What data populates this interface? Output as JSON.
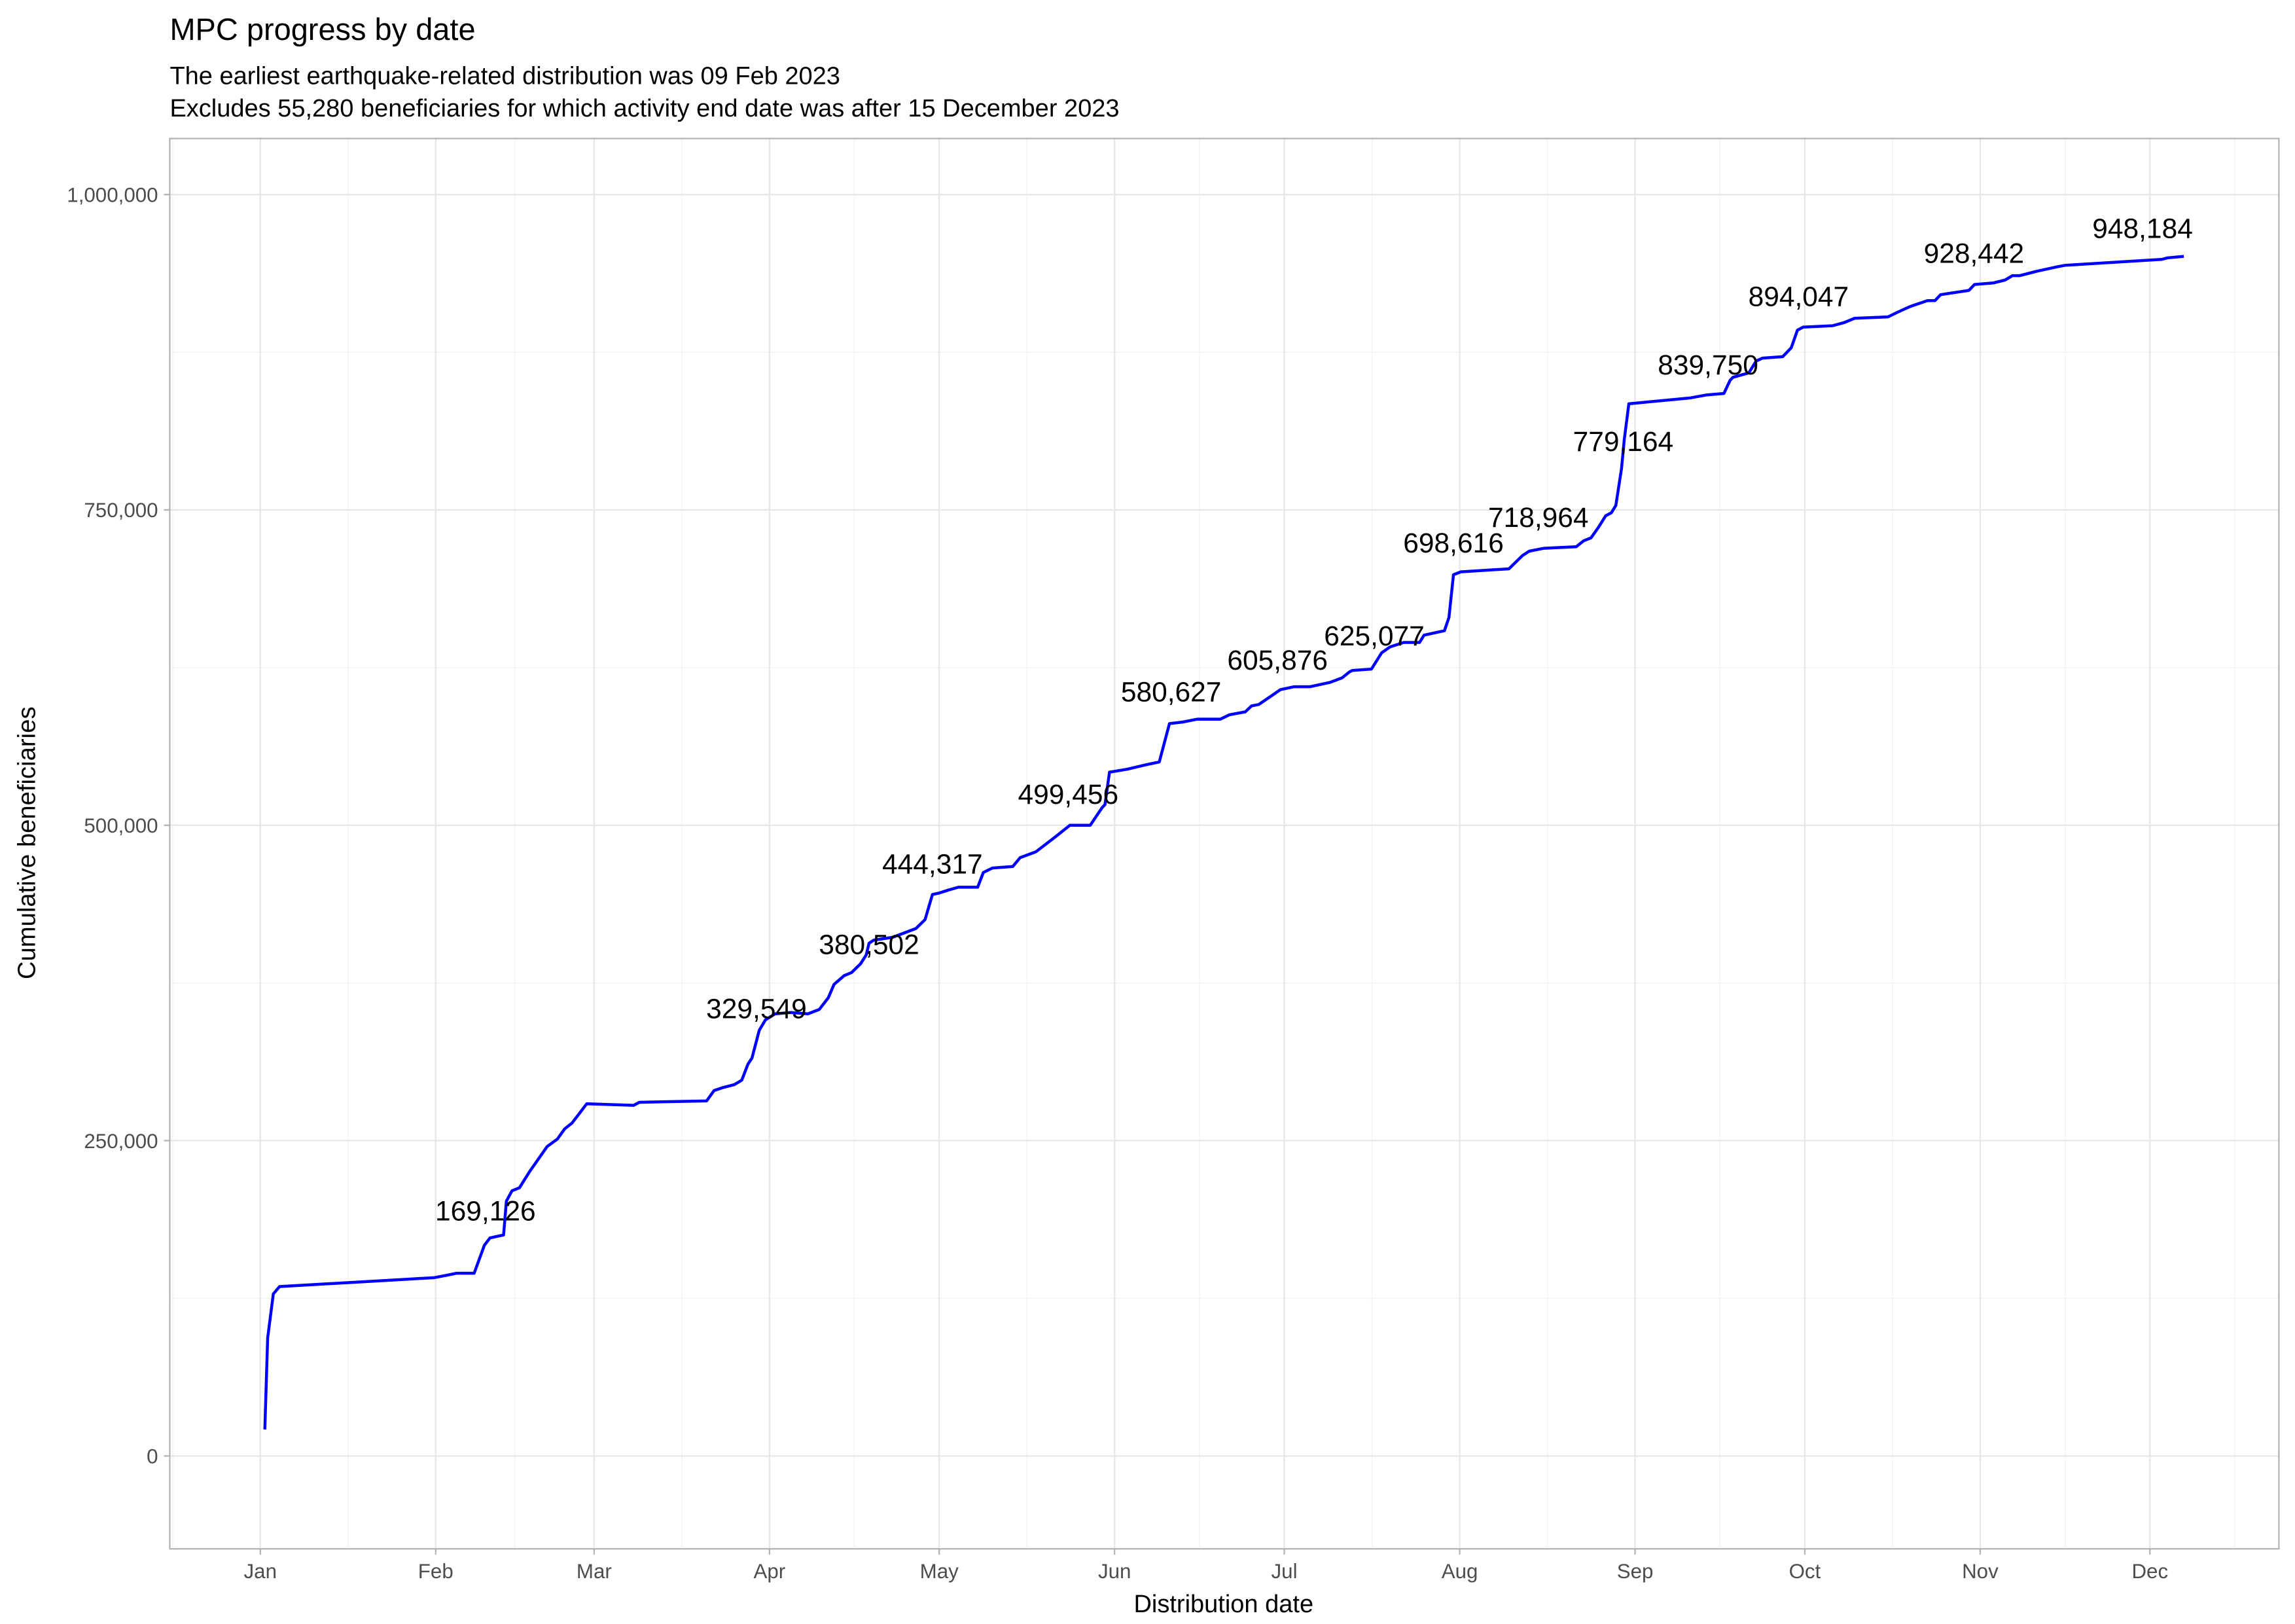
{
  "chart_data": {
    "type": "line",
    "title": "MPC progress by date",
    "subtitle": [
      "The earliest earthquake-related distribution was 09 Feb 2023",
      "Excludes 55,280 beneficiaries for which activity end date was after 15 December 2023"
    ],
    "x_label": "Distribution date",
    "y_label": "Cumulative beneficiaries",
    "xlim": [
      -15,
      357.8
    ],
    "ylim": [
      -73600,
      1044400
    ],
    "xticks": [
      {
        "value": 1,
        "label": "Jan"
      },
      {
        "value": 32,
        "label": "Feb"
      },
      {
        "value": 60,
        "label": "Mar"
      },
      {
        "value": 91,
        "label": "Apr"
      },
      {
        "value": 121,
        "label": "May"
      },
      {
        "value": 152,
        "label": "Jun"
      },
      {
        "value": 182,
        "label": "Jul"
      },
      {
        "value": 213,
        "label": "Aug"
      },
      {
        "value": 244,
        "label": "Sep"
      },
      {
        "value": 274,
        "label": "Oct"
      },
      {
        "value": 305,
        "label": "Nov"
      },
      {
        "value": 335,
        "label": "Dec"
      }
    ],
    "yticks": [
      0,
      {
        "value": 250000,
        "label": "250,000"
      },
      {
        "value": 500000,
        "label": "500,000"
      },
      {
        "value": 750000,
        "label": "750,000"
      },
      {
        "value": 1000000,
        "label": "1,000,000"
      }
    ],
    "grid": true,
    "x": [
      1.8,
      2.3,
      3.3,
      4.4,
      31.8,
      34.4,
      35.7,
      38.8,
      40.6,
      41.6,
      44,
      44.5,
      45.5,
      46.8,
      48.6,
      51.7,
      53.5,
      54.8,
      56.1,
      58.7,
      67,
      68,
      79.9,
      81.2,
      82.8,
      84.8,
      86.1,
      87.2,
      87.9,
      89.2,
      90.3,
      92,
      94.7,
      97.8,
      99.8,
      101.4,
      102.4,
      104.2,
      105.5,
      107.1,
      108.1,
      108.6,
      109.4,
      112.8,
      116.9,
      118.5,
      119.8,
      121,
      122.6,
      124.4,
      127.8,
      128.8,
      130.4,
      134,
      135.3,
      138.1,
      141.5,
      144.1,
      147.7,
      149.8,
      150.3,
      151.1,
      154.2,
      157.5,
      159.9,
      161.7,
      164,
      166.6,
      170.7,
      172.3,
      175.1,
      176.2,
      177.5,
      179.8,
      181.3,
      183.7,
      186.5,
      190.1,
      192.2,
      193.5,
      194,
      197.4,
      199.2,
      200.7,
      203.1,
      205.9,
      206.7,
      210.3,
      211.1,
      211.9,
      213.2,
      221.7,
      224.1,
      225.3,
      227.9,
      233.6,
      234.9,
      236.2,
      237.5,
      238.8,
      239.8,
      240.6,
      241.6,
      242.1,
      242.9,
      253.8,
      256.6,
      259.7,
      260.8,
      261.3,
      264.1,
      265.4,
      266.5,
      270.1,
      271.6,
      272.7,
      273.7,
      278.9,
      280.9,
      282.8,
      288.7,
      290.3,
      292.6,
      295.7,
      297,
      298,
      303,
      304,
      307.3,
      309.4,
      310.7,
      312,
      315.1,
      318.7,
      320,
      337.1,
      338.1,
      341
    ],
    "series": [
      {
        "color": "#0000ff",
        "values": [
          21000,
          93500,
          128500,
          134300,
          141400,
          143700,
          144900,
          144900,
          167000,
          172900,
          175200,
          202100,
          210300,
          212600,
          225500,
          245300,
          251200,
          259300,
          264000,
          279200,
          278000,
          280400,
          281500,
          289700,
          292100,
          294400,
          297900,
          310700,
          315400,
          337600,
          345800,
          350500,
          351600,
          350500,
          354000,
          363300,
          373800,
          380800,
          383200,
          390200,
          397200,
          406500,
          408900,
          411200,
          418200,
          425200,
          445100,
          446300,
          448600,
          450900,
          450900,
          462600,
          466100,
          467300,
          474300,
          479000,
          490700,
          500000,
          500000,
          514000,
          516400,
          542100,
          544400,
          547900,
          550200,
          580600,
          581800,
          584100,
          584100,
          587600,
          589900,
          594600,
          595800,
          602800,
          607500,
          609800,
          609800,
          613300,
          616800,
          621500,
          622700,
          623800,
          636700,
          641400,
          644900,
          644900,
          650700,
          654200,
          664700,
          698600,
          700900,
          703300,
          713800,
          717300,
          719600,
          720800,
          725500,
          727800,
          736000,
          745300,
          747700,
          753500,
          782700,
          806100,
          834100,
          838800,
          841100,
          842300,
          852800,
          855100,
          858600,
          868000,
          870300,
          871500,
          878500,
          892500,
          894900,
          896000,
          898400,
          901900,
          903000,
          906500,
          911200,
          915900,
          915900,
          920600,
          924000,
          928700,
          929900,
          932200,
          935700,
          935700,
          939300,
          942800,
          943900,
          948600,
          949800,
          951000
        ]
      }
    ],
    "annotations": {
      "x": [
        40.8,
        88.7,
        108.6,
        119.8,
        143.8,
        162,
        180.8,
        197.9,
        211.9,
        226.9,
        241.9,
        256.9,
        272.9,
        303.9,
        333.7
      ],
      "values": [
        169126,
        329549,
        380502,
        444317,
        499456,
        580627,
        605876,
        625077,
        698616,
        718964,
        779164,
        839750,
        894047,
        928442,
        948184
      ],
      "value_labels": [
        "169,126",
        "329,549",
        "380,502",
        "444,317",
        "499,456",
        "580,627",
        "605,876",
        "625,077",
        "698,616",
        "718,964",
        "779,164",
        "839,750",
        "894,047",
        "928,442",
        "948,184"
      ]
    }
  }
}
